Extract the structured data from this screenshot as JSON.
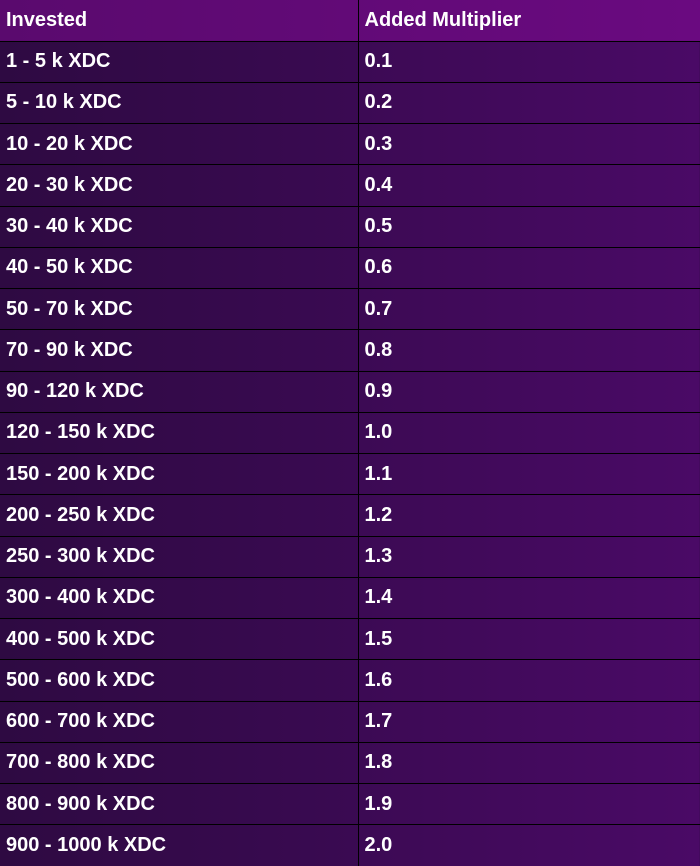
{
  "table": {
    "headers": {
      "invested": "Invested",
      "multiplier": "Added Multiplier"
    },
    "rows": [
      {
        "invested": "1 - 5 k XDC",
        "multiplier": "0.1"
      },
      {
        "invested": "5 - 10 k XDC",
        "multiplier": "0.2"
      },
      {
        "invested": "10 - 20 k XDC",
        "multiplier": "0.3"
      },
      {
        "invested": "20 - 30 k XDC",
        "multiplier": "0.4"
      },
      {
        "invested": "30 - 40 k XDC",
        "multiplier": "0.5"
      },
      {
        "invested": "40 - 50 k XDC",
        "multiplier": "0.6"
      },
      {
        "invested": "50 - 70 k XDC",
        "multiplier": "0.7"
      },
      {
        "invested": "70 - 90 k XDC",
        "multiplier": "0.8"
      },
      {
        "invested": "90 - 120 k XDC",
        "multiplier": "0.9"
      },
      {
        "invested": "120 - 150 k XDC",
        "multiplier": "1.0"
      },
      {
        "invested": "150 - 200 k XDC",
        "multiplier": "1.1"
      },
      {
        "invested": "200 - 250 k XDC",
        "multiplier": "1.2"
      },
      {
        "invested": "250 - 300 k XDC",
        "multiplier": "1.3"
      },
      {
        "invested": "300 - 400 k XDC",
        "multiplier": "1.4"
      },
      {
        "invested": "400 - 500 k XDC",
        "multiplier": "1.5"
      },
      {
        "invested": "500 - 600 k XDC",
        "multiplier": "1.6"
      },
      {
        "invested": "600 - 700 k XDC",
        "multiplier": "1.7"
      },
      {
        "invested": "700 - 800 k XDC",
        "multiplier": "1.8"
      },
      {
        "invested": "800 - 900 k XDC",
        "multiplier": "1.9"
      },
      {
        "invested": "900 - 1000 k XDC",
        "multiplier": "2.0"
      }
    ]
  },
  "colors": {
    "header_bg": "#6a0a80",
    "invested_cell_bg": "#3a0a52",
    "multiplier_cell_bg": "#4a0a66",
    "grid_line": "#000000",
    "text": "#ffffff"
  }
}
